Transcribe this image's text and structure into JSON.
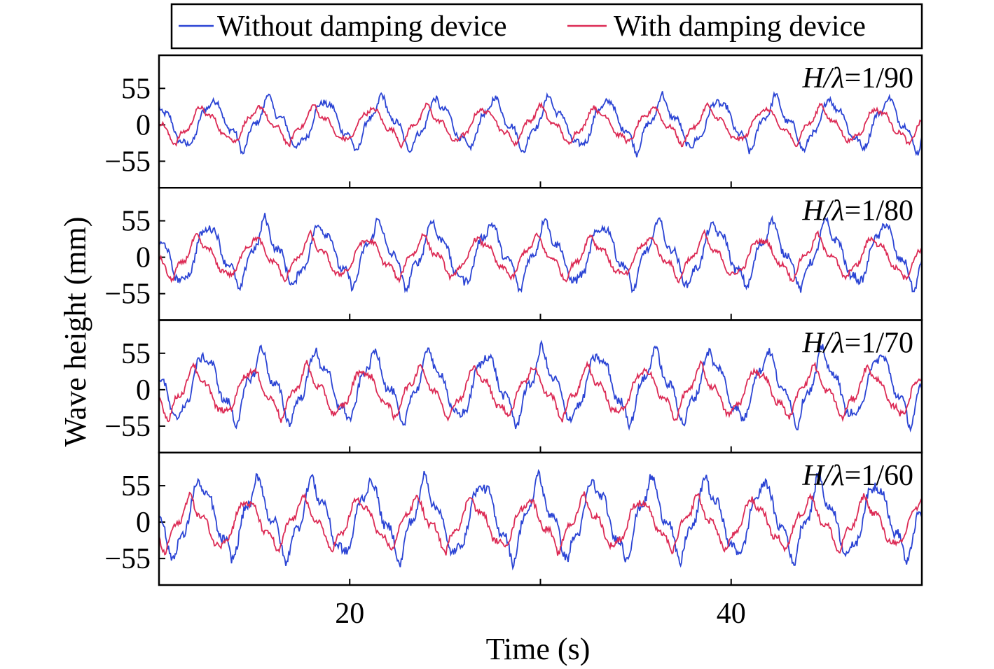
{
  "chart_data": {
    "type": "line",
    "xlabel": "Time (s)",
    "ylabel": "Wave height (mm)",
    "xlim": [
      10,
      50
    ],
    "x_ticks": [
      20,
      40
    ],
    "x_minor_ticks": [
      30
    ],
    "ylim": [
      -95,
      105
    ],
    "y_ticks": [
      55,
      0,
      -55
    ],
    "y_tick_labels": [
      "55",
      "0",
      "−55"
    ],
    "legend": {
      "placement": "top",
      "entries": [
        {
          "name": "Without damping device",
          "color": "#2b44d4"
        },
        {
          "name": "With damping device",
          "color": "#dc2b55"
        }
      ]
    },
    "panels": [
      {
        "label_prefix": "H/λ",
        "label_value": "=1/90",
        "wave_period_s": 2.95,
        "series": [
          {
            "name": "Without damping device",
            "color": "#2b44d4",
            "amplitude_mm": 40,
            "offset_mm": 2
          },
          {
            "name": "With damping device",
            "color": "#dc2b55",
            "amplitude_mm": 28,
            "offset_mm": 0
          }
        ]
      },
      {
        "label_prefix": "H/λ",
        "label_value": "=1/80",
        "wave_period_s": 2.95,
        "series": [
          {
            "name": "Without damping device",
            "color": "#2b44d4",
            "amplitude_mm": 50,
            "offset_mm": 5
          },
          {
            "name": "With damping device",
            "color": "#dc2b55",
            "amplitude_mm": 32,
            "offset_mm": 0
          }
        ]
      },
      {
        "label_prefix": "H/λ",
        "label_value": "=1/70",
        "wave_period_s": 2.95,
        "series": [
          {
            "name": "Without damping device",
            "color": "#2b44d4",
            "amplitude_mm": 55,
            "offset_mm": 5
          },
          {
            "name": "With damping device",
            "color": "#dc2b55",
            "amplitude_mm": 38,
            "offset_mm": -3
          }
        ]
      },
      {
        "label_prefix": "H/λ",
        "label_value": "=1/60",
        "wave_period_s": 2.95,
        "series": [
          {
            "name": "Without damping device",
            "color": "#2b44d4",
            "amplitude_mm": 62,
            "offset_mm": 5
          },
          {
            "name": "With damping device",
            "color": "#dc2b55",
            "amplitude_mm": 40,
            "offset_mm": -2
          }
        ]
      }
    ]
  }
}
